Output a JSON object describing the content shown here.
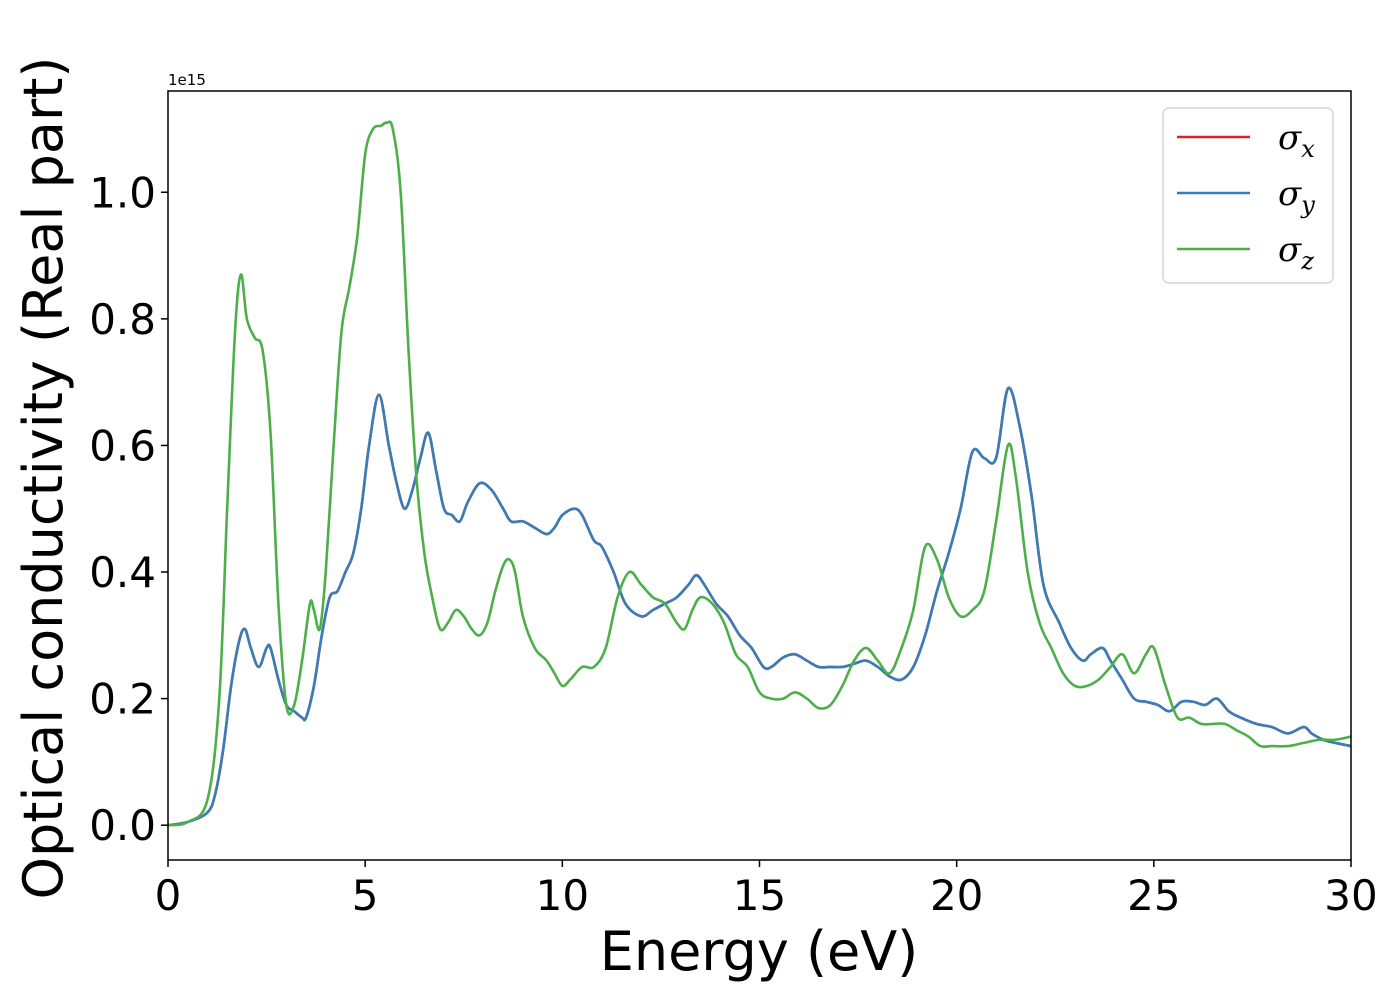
{
  "chart_data": {
    "type": "line",
    "xlabel": "Energy (eV)",
    "ylabel": "Optical conductivity (Real part)",
    "y_multiplier_label": "1e15",
    "xlim": [
      0,
      30
    ],
    "ylim": [
      -0.055,
      1.16
    ],
    "xticks": [
      0,
      5,
      10,
      15,
      20,
      25,
      30
    ],
    "yticks": [
      0.0,
      0.2,
      0.4,
      0.6,
      0.8,
      1.0
    ],
    "xtick_labels": [
      "0",
      "5",
      "10",
      "15",
      "20",
      "25",
      "30"
    ],
    "ytick_labels": [
      "0.0",
      "0.2",
      "0.4",
      "0.6",
      "0.8",
      "1.0"
    ],
    "grid": false,
    "legend_position": "top-right",
    "series": [
      {
        "name": "σ",
        "subscript": "x",
        "color": "#d62728",
        "x": [
          0,
          0.5,
          1.0,
          1.2,
          1.4,
          1.6,
          1.8,
          1.95,
          2.1,
          2.3,
          2.5,
          2.6,
          2.8,
          3.0,
          3.2,
          3.4,
          3.5,
          3.7,
          3.9,
          4.1,
          4.3,
          4.5,
          4.7,
          4.9,
          5.1,
          5.35,
          5.6,
          5.8,
          6.0,
          6.2,
          6.4,
          6.6,
          6.8,
          7.0,
          7.2,
          7.4,
          7.6,
          7.9,
          8.2,
          8.5,
          8.7,
          9.0,
          9.3,
          9.6,
          9.8,
          10.0,
          10.3,
          10.5,
          10.8,
          11.0,
          11.3,
          11.6,
          12.0,
          12.3,
          12.6,
          12.9,
          13.2,
          13.4,
          13.6,
          13.9,
          14.2,
          14.5,
          14.8,
          15.1,
          15.3,
          15.6,
          15.9,
          16.2,
          16.5,
          16.8,
          17.1,
          17.4,
          17.7,
          18.0,
          18.3,
          18.6,
          18.9,
          19.2,
          19.5,
          19.8,
          20.1,
          20.4,
          20.7,
          21.0,
          21.3,
          21.6,
          21.9,
          22.2,
          22.6,
          22.9,
          23.2,
          23.4,
          23.7,
          23.9,
          24.2,
          24.5,
          24.8,
          25.1,
          25.4,
          25.7,
          26.0,
          26.3,
          26.6,
          26.9,
          27.2,
          27.6,
          28.0,
          28.4,
          28.8,
          29.0,
          29.3,
          29.6,
          30.0
        ],
        "values": [
          0.0,
          0.005,
          0.02,
          0.05,
          0.12,
          0.22,
          0.29,
          0.31,
          0.28,
          0.25,
          0.28,
          0.28,
          0.23,
          0.19,
          0.18,
          0.17,
          0.17,
          0.22,
          0.3,
          0.36,
          0.37,
          0.4,
          0.43,
          0.5,
          0.6,
          0.68,
          0.6,
          0.54,
          0.5,
          0.53,
          0.58,
          0.62,
          0.56,
          0.5,
          0.49,
          0.48,
          0.51,
          0.54,
          0.53,
          0.5,
          0.48,
          0.48,
          0.47,
          0.46,
          0.47,
          0.49,
          0.5,
          0.49,
          0.45,
          0.44,
          0.4,
          0.35,
          0.33,
          0.34,
          0.35,
          0.36,
          0.38,
          0.395,
          0.38,
          0.35,
          0.33,
          0.3,
          0.28,
          0.25,
          0.25,
          0.265,
          0.27,
          0.26,
          0.25,
          0.25,
          0.25,
          0.255,
          0.26,
          0.25,
          0.235,
          0.23,
          0.25,
          0.3,
          0.37,
          0.43,
          0.5,
          0.59,
          0.58,
          0.58,
          0.69,
          0.63,
          0.52,
          0.38,
          0.32,
          0.28,
          0.26,
          0.27,
          0.28,
          0.26,
          0.23,
          0.2,
          0.195,
          0.19,
          0.18,
          0.195,
          0.195,
          0.19,
          0.2,
          0.18,
          0.17,
          0.16,
          0.155,
          0.145,
          0.155,
          0.145,
          0.135,
          0.13,
          0.125
        ]
      },
      {
        "name": "σ",
        "subscript": "y",
        "color": "#377eb8",
        "x": [
          0,
          0.5,
          1.0,
          1.2,
          1.4,
          1.6,
          1.8,
          1.95,
          2.1,
          2.3,
          2.5,
          2.6,
          2.8,
          3.0,
          3.2,
          3.4,
          3.5,
          3.7,
          3.9,
          4.1,
          4.3,
          4.5,
          4.7,
          4.9,
          5.1,
          5.35,
          5.6,
          5.8,
          6.0,
          6.2,
          6.4,
          6.6,
          6.8,
          7.0,
          7.2,
          7.4,
          7.6,
          7.9,
          8.2,
          8.5,
          8.7,
          9.0,
          9.3,
          9.6,
          9.8,
          10.0,
          10.3,
          10.5,
          10.8,
          11.0,
          11.3,
          11.6,
          12.0,
          12.3,
          12.6,
          12.9,
          13.2,
          13.4,
          13.6,
          13.9,
          14.2,
          14.5,
          14.8,
          15.1,
          15.3,
          15.6,
          15.9,
          16.2,
          16.5,
          16.8,
          17.1,
          17.4,
          17.7,
          18.0,
          18.3,
          18.6,
          18.9,
          19.2,
          19.5,
          19.8,
          20.1,
          20.4,
          20.7,
          21.0,
          21.3,
          21.6,
          21.9,
          22.2,
          22.6,
          22.9,
          23.2,
          23.4,
          23.7,
          23.9,
          24.2,
          24.5,
          24.8,
          25.1,
          25.4,
          25.7,
          26.0,
          26.3,
          26.6,
          26.9,
          27.2,
          27.6,
          28.0,
          28.4,
          28.8,
          29.0,
          29.3,
          29.6,
          30.0
        ],
        "values": [
          0.0,
          0.005,
          0.02,
          0.05,
          0.12,
          0.22,
          0.29,
          0.31,
          0.28,
          0.25,
          0.28,
          0.28,
          0.23,
          0.19,
          0.18,
          0.17,
          0.17,
          0.22,
          0.3,
          0.36,
          0.37,
          0.4,
          0.43,
          0.5,
          0.6,
          0.68,
          0.6,
          0.54,
          0.5,
          0.53,
          0.58,
          0.62,
          0.56,
          0.5,
          0.49,
          0.48,
          0.51,
          0.54,
          0.53,
          0.5,
          0.48,
          0.48,
          0.47,
          0.46,
          0.47,
          0.49,
          0.5,
          0.49,
          0.45,
          0.44,
          0.4,
          0.35,
          0.33,
          0.34,
          0.35,
          0.36,
          0.38,
          0.395,
          0.38,
          0.35,
          0.33,
          0.3,
          0.28,
          0.25,
          0.25,
          0.265,
          0.27,
          0.26,
          0.25,
          0.25,
          0.25,
          0.255,
          0.26,
          0.25,
          0.235,
          0.23,
          0.25,
          0.3,
          0.37,
          0.43,
          0.5,
          0.59,
          0.58,
          0.58,
          0.69,
          0.63,
          0.52,
          0.38,
          0.32,
          0.28,
          0.26,
          0.27,
          0.28,
          0.26,
          0.23,
          0.2,
          0.195,
          0.19,
          0.18,
          0.195,
          0.195,
          0.19,
          0.2,
          0.18,
          0.17,
          0.16,
          0.155,
          0.145,
          0.155,
          0.145,
          0.135,
          0.13,
          0.125
        ]
      },
      {
        "name": "σ",
        "subscript": "z",
        "color": "#4daf4a",
        "x": [
          0,
          0.5,
          1.0,
          1.3,
          1.5,
          1.7,
          1.85,
          2.0,
          2.2,
          2.4,
          2.6,
          2.8,
          3.0,
          3.2,
          3.4,
          3.6,
          3.7,
          3.85,
          4.0,
          4.2,
          4.4,
          4.6,
          4.8,
          5.0,
          5.2,
          5.4,
          5.55,
          5.7,
          5.9,
          6.1,
          6.3,
          6.5,
          6.7,
          6.9,
          7.1,
          7.3,
          7.5,
          7.7,
          7.9,
          8.1,
          8.3,
          8.5,
          8.65,
          8.8,
          9.0,
          9.3,
          9.6,
          9.8,
          10.0,
          10.2,
          10.5,
          10.8,
          11.1,
          11.4,
          11.7,
          12.0,
          12.3,
          12.6,
          12.9,
          13.1,
          13.3,
          13.5,
          13.8,
          14.1,
          14.4,
          14.7,
          15.0,
          15.3,
          15.6,
          15.9,
          16.2,
          16.5,
          16.8,
          17.1,
          17.4,
          17.7,
          18.0,
          18.3,
          18.6,
          18.9,
          19.2,
          19.5,
          19.8,
          20.1,
          20.4,
          20.7,
          21.0,
          21.3,
          21.5,
          21.8,
          22.1,
          22.4,
          22.7,
          23.0,
          23.3,
          23.6,
          23.9,
          24.2,
          24.5,
          24.8,
          25.0,
          25.3,
          25.6,
          25.9,
          26.2,
          26.5,
          26.8,
          27.1,
          27.4,
          27.7,
          28.0,
          28.4,
          28.8,
          29.2,
          29.6,
          30.0
        ],
        "values": [
          0.0,
          0.005,
          0.04,
          0.2,
          0.5,
          0.78,
          0.87,
          0.8,
          0.77,
          0.75,
          0.62,
          0.35,
          0.19,
          0.19,
          0.26,
          0.35,
          0.34,
          0.31,
          0.4,
          0.6,
          0.78,
          0.85,
          0.93,
          1.06,
          1.1,
          1.105,
          1.11,
          1.1,
          1.0,
          0.75,
          0.55,
          0.43,
          0.36,
          0.31,
          0.32,
          0.34,
          0.33,
          0.31,
          0.3,
          0.32,
          0.37,
          0.41,
          0.42,
          0.4,
          0.33,
          0.28,
          0.26,
          0.24,
          0.22,
          0.23,
          0.25,
          0.25,
          0.28,
          0.36,
          0.4,
          0.38,
          0.36,
          0.35,
          0.32,
          0.31,
          0.34,
          0.36,
          0.35,
          0.32,
          0.27,
          0.25,
          0.21,
          0.2,
          0.2,
          0.21,
          0.2,
          0.185,
          0.19,
          0.22,
          0.26,
          0.28,
          0.26,
          0.24,
          0.28,
          0.34,
          0.44,
          0.42,
          0.36,
          0.33,
          0.34,
          0.37,
          0.48,
          0.6,
          0.55,
          0.4,
          0.32,
          0.28,
          0.24,
          0.22,
          0.22,
          0.23,
          0.25,
          0.27,
          0.24,
          0.27,
          0.28,
          0.22,
          0.17,
          0.17,
          0.16,
          0.16,
          0.16,
          0.15,
          0.14,
          0.125,
          0.125,
          0.125,
          0.13,
          0.135,
          0.135,
          0.14
        ]
      }
    ]
  }
}
